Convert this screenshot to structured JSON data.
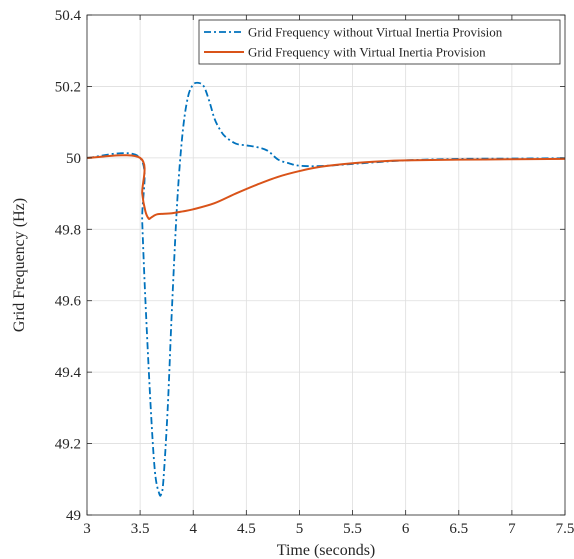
{
  "chart_data": {
    "type": "line",
    "title": "",
    "xlabel": "Time (seconds)",
    "ylabel": "Grid Frequency (Hz)",
    "xlim": [
      3,
      7.5
    ],
    "ylim": [
      49,
      50.4
    ],
    "xticks": [
      3,
      3.5,
      4,
      4.5,
      5,
      5.5,
      6,
      6.5,
      7,
      7.5
    ],
    "yticks": [
      49,
      49.2,
      49.4,
      49.6,
      49.8,
      50,
      50.2,
      50.4
    ],
    "grid": true,
    "legend_position": "top-right",
    "series": [
      {
        "name": "Grid Frequency without Virtual Inertia Provision",
        "color": "#0072BD",
        "line_style": "dash-dot",
        "x": [
          3.0,
          3.5,
          3.52,
          3.55,
          3.6,
          3.64,
          3.68,
          3.7,
          3.72,
          3.76,
          3.8,
          3.85,
          3.9,
          3.95,
          4.0,
          4.05,
          4.1,
          4.15,
          4.2,
          4.25,
          4.3,
          4.4,
          4.5,
          4.6,
          4.7,
          4.8,
          4.9,
          5.0,
          5.2,
          5.5,
          6.0,
          6.5,
          7.0,
          7.5
        ],
        "y": [
          50.0,
          50.0,
          49.82,
          49.6,
          49.3,
          49.12,
          49.06,
          49.06,
          49.1,
          49.3,
          49.58,
          49.88,
          50.07,
          50.17,
          50.205,
          50.21,
          50.2,
          50.16,
          50.11,
          50.08,
          50.06,
          50.04,
          50.035,
          50.03,
          50.02,
          49.995,
          49.985,
          49.978,
          49.977,
          49.983,
          49.993,
          49.997,
          49.998,
          49.999
        ]
      },
      {
        "name": "Grid Frequency with Virtual Inertia Provision",
        "color": "#D95319",
        "line_style": "solid",
        "x": [
          3.0,
          3.5,
          3.52,
          3.55,
          3.58,
          3.6,
          3.63,
          3.66,
          3.7,
          3.8,
          3.9,
          4.0,
          4.2,
          4.4,
          4.6,
          4.8,
          5.0,
          5.2,
          5.5,
          5.8,
          6.0,
          6.5,
          7.0,
          7.5
        ],
        "y": [
          50.0,
          50.0,
          49.9,
          49.85,
          49.83,
          49.832,
          49.838,
          49.842,
          49.843,
          49.845,
          49.85,
          49.856,
          49.873,
          49.9,
          49.925,
          49.947,
          49.963,
          49.975,
          49.985,
          49.991,
          49.993,
          49.995,
          49.996,
          49.997
        ]
      }
    ]
  }
}
